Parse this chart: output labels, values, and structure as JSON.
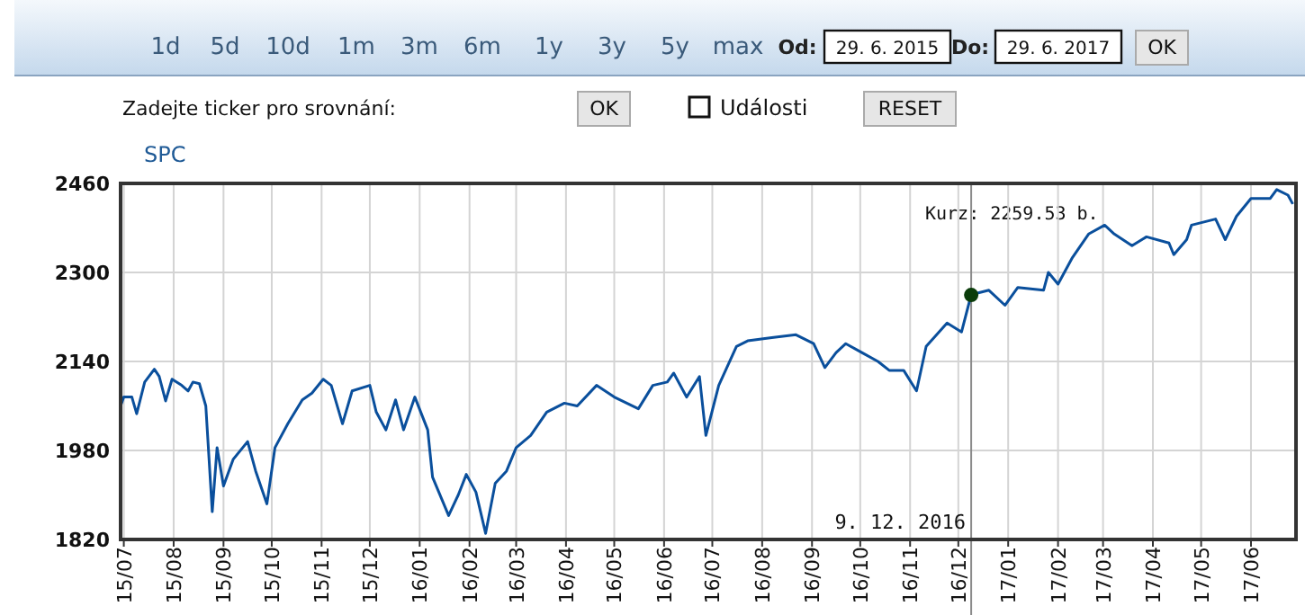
{
  "chart_data": {
    "type": "line",
    "title": "SPC",
    "xlim": [
      "2015-06-29",
      "2017-06-29"
    ],
    "xticks": [
      {
        "value": "2015-07-01",
        "label": "15/07"
      },
      {
        "value": "2015-08-01",
        "label": "15/08"
      },
      {
        "value": "2015-09-01",
        "label": "15/09"
      },
      {
        "value": "2015-10-01",
        "label": "15/10"
      },
      {
        "value": "2015-11-01",
        "label": "15/11"
      },
      {
        "value": "2015-12-01",
        "label": "15/12"
      },
      {
        "value": "2016-01-01",
        "label": "16/01"
      },
      {
        "value": "2016-02-01",
        "label": "16/02"
      },
      {
        "value": "2016-03-01",
        "label": "16/03"
      },
      {
        "value": "2016-04-01",
        "label": "16/04"
      },
      {
        "value": "2016-05-01",
        "label": "16/05"
      },
      {
        "value": "2016-06-01",
        "label": "16/06"
      },
      {
        "value": "2016-07-01",
        "label": "16/07"
      },
      {
        "value": "2016-08-01",
        "label": "16/08"
      },
      {
        "value": "2016-09-01",
        "label": "16/09"
      },
      {
        "value": "2016-10-01",
        "label": "16/10"
      },
      {
        "value": "2016-11-01",
        "label": "16/11"
      },
      {
        "value": "2016-12-01",
        "label": "16/12"
      },
      {
        "value": "2017-01-01",
        "label": "17/01"
      },
      {
        "value": "2017-02-01",
        "label": "17/02"
      },
      {
        "value": "2017-03-01",
        "label": "17/03"
      },
      {
        "value": "2017-04-01",
        "label": "17/04"
      },
      {
        "value": "2017-05-01",
        "label": "17/05"
      },
      {
        "value": "2017-06-01",
        "label": "17/06"
      }
    ],
    "ylim": [
      1820,
      2460
    ],
    "yticks": [
      1820,
      1980,
      2140,
      2300,
      2460
    ],
    "grid": true,
    "series": [
      {
        "color": "#0a4f9c",
        "x": [
          "2015-06-29",
          "2015-07-01",
          "2015-07-06",
          "2015-07-09",
          "2015-07-14",
          "2015-07-20",
          "2015-07-23",
          "2015-07-27",
          "2015-07-31",
          "2015-08-06",
          "2015-08-10",
          "2015-08-13",
          "2015-08-17",
          "2015-08-21",
          "2015-08-25",
          "2015-08-28",
          "2015-09-01",
          "2015-09-07",
          "2015-09-16",
          "2015-09-21",
          "2015-09-28",
          "2015-10-03",
          "2015-10-11",
          "2015-10-20",
          "2015-10-26",
          "2015-11-02",
          "2015-11-07",
          "2015-11-14",
          "2015-11-20",
          "2015-12-01",
          "2015-12-05",
          "2015-12-11",
          "2015-12-17",
          "2015-12-22",
          "2015-12-29",
          "2016-01-06",
          "2016-01-09",
          "2016-01-19",
          "2016-01-25",
          "2016-01-30",
          "2016-02-05",
          "2016-02-11",
          "2016-02-17",
          "2016-02-24",
          "2016-03-01",
          "2016-03-10",
          "2016-03-20",
          "2016-03-31",
          "2016-04-08",
          "2016-04-20",
          "2016-05-01",
          "2016-05-16",
          "2016-05-25",
          "2016-06-03",
          "2016-06-07",
          "2016-06-15",
          "2016-06-23",
          "2016-06-27",
          "2016-07-05",
          "2016-07-16",
          "2016-07-23",
          "2016-08-07",
          "2016-08-22",
          "2016-09-02",
          "2016-09-09",
          "2016-09-16",
          "2016-09-22",
          "2016-10-02",
          "2016-10-12",
          "2016-10-19",
          "2016-10-28",
          "2016-11-05",
          "2016-11-11",
          "2016-11-24",
          "2016-12-03",
          "2016-12-09",
          "2016-12-20",
          "2016-12-30",
          "2017-01-07",
          "2017-01-23",
          "2017-01-26",
          "2017-02-01",
          "2017-02-10",
          "2017-02-20",
          "2017-03-02",
          "2017-03-08",
          "2017-03-19",
          "2017-03-28",
          "2017-04-11",
          "2017-04-14",
          "2017-04-22",
          "2017-04-25",
          "2017-05-10",
          "2017-05-16",
          "2017-05-23",
          "2017-06-01",
          "2017-06-13",
          "2017-06-17",
          "2017-06-24",
          "2017-06-27"
        ],
        "values": [
          2060,
          2076,
          2076,
          2046,
          2103,
          2126,
          2113,
          2069,
          2108,
          2097,
          2087,
          2103,
          2100,
          2060,
          1870,
          1985,
          1916,
          1964,
          1996,
          1943,
          1884,
          1985,
          2028,
          2071,
          2083,
          2108,
          2097,
          2028,
          2087,
          2097,
          2049,
          2017,
          2071,
          2017,
          2076,
          2017,
          1932,
          1863,
          1900,
          1937,
          1905,
          1831,
          1921,
          1943,
          1985,
          2007,
          2049,
          2065,
          2060,
          2097,
          2076,
          2055,
          2097,
          2103,
          2119,
          2076,
          2113,
          2007,
          2097,
          2167,
          2177,
          2183,
          2188,
          2172,
          2129,
          2156,
          2172,
          2156,
          2140,
          2124,
          2124,
          2087,
          2167,
          2209,
          2193,
          2260,
          2268,
          2241,
          2273,
          2268,
          2300,
          2279,
          2327,
          2369,
          2385,
          2369,
          2348,
          2364,
          2353,
          2332,
          2359,
          2385,
          2396,
          2359,
          2401,
          2433,
          2433,
          2449,
          2439,
          2423
        ]
      },
      {
        "type": "scatter",
        "color": "#0b3d0b",
        "marker": "circle",
        "x": [
          "2016-12-09"
        ],
        "values": [
          2259.53
        ]
      }
    ],
    "ref_lines": [
      {
        "axis": "x",
        "value": "2016-12-09",
        "label": "9. 12. 2016",
        "color": "#8a8a8a"
      }
    ],
    "annotations": [
      "1d",
      "5d",
      "10d",
      "1m",
      "3m",
      "6m",
      "1y",
      "3y",
      "5y",
      "max",
      "Od:",
      "29. 6. 2015",
      "Do:",
      "29. 6. 2017",
      "OK",
      "Zadejte ticker pro srovnání:",
      "OK",
      "Události",
      "RESET",
      "Kurz: 2259.53 b."
    ]
  }
}
